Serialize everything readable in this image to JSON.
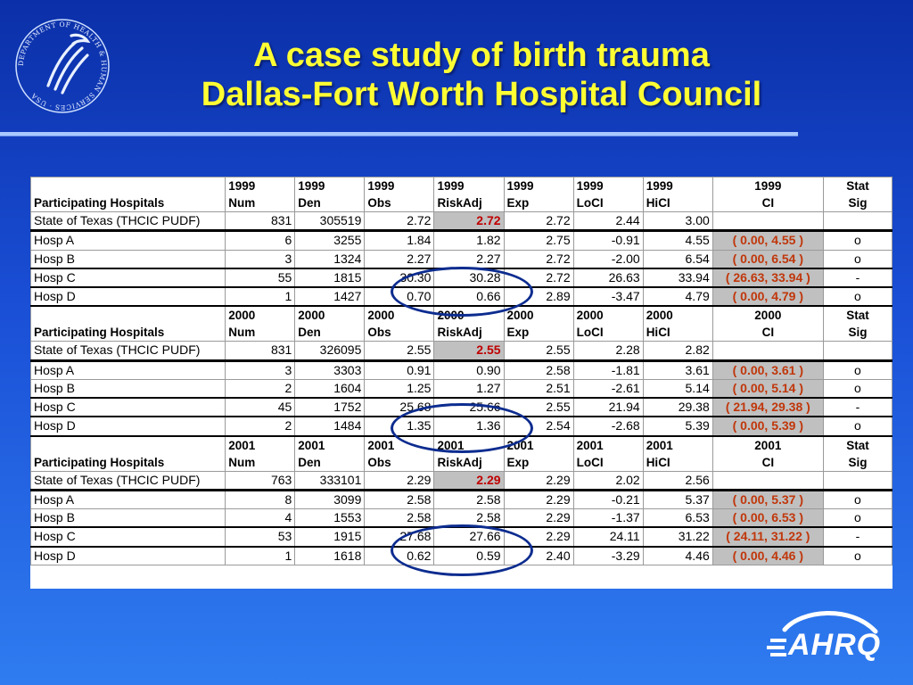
{
  "title": {
    "line1": "A case study of birth trauma",
    "line2": "Dallas-Fort Worth Hospital Council"
  },
  "logos": {
    "hhs_ring_text": "DEPARTMENT OF HEALTH & HUMAN SERVICES · USA",
    "ahrq_text": "AHRQ"
  },
  "colors": {
    "title": "#ffff33",
    "highlight_risk": "#c00000",
    "highlight_ci": "#c0370b",
    "cell_gray": "#c0c0c0"
  },
  "header_common": {
    "first_col": "Participating Hospitals",
    "sub": [
      "Num",
      "Den",
      "Obs",
      "RiskAdj",
      "Exp",
      "LoCI",
      "HiCI",
      "CI"
    ],
    "stat": "Stat",
    "sig": "Sig"
  },
  "blocks": [
    {
      "year": "1999",
      "state": {
        "name": "State of Texas (THCIC PUDF)",
        "num": "831",
        "den": "305519",
        "obs": "2.72",
        "riskadj": "2.72",
        "exp": "2.72",
        "loci": "2.44",
        "hici": "3.00"
      },
      "rows": [
        {
          "name": "Hosp A",
          "num": "6",
          "den": "3255",
          "obs": "1.84",
          "riskadj": "1.82",
          "exp": "2.75",
          "loci": "-0.91",
          "hici": "4.55",
          "ci": "( 0.00,  4.55 )",
          "sig": "o"
        },
        {
          "name": "Hosp B",
          "num": "3",
          "den": "1324",
          "obs": "2.27",
          "riskadj": "2.27",
          "exp": "2.72",
          "loci": "-2.00",
          "hici": "6.54",
          "ci": "( 0.00,  6.54 )",
          "sig": "o"
        },
        {
          "name": "Hosp C",
          "num": "55",
          "den": "1815",
          "obs": "30.30",
          "riskadj": "30.28",
          "exp": "2.72",
          "loci": "26.63",
          "hici": "33.94",
          "ci": "( 26.63,  33.94 )",
          "sig": "-"
        },
        {
          "name": "Hosp D",
          "num": "1",
          "den": "1427",
          "obs": "0.70",
          "riskadj": "0.66",
          "exp": "2.89",
          "loci": "-3.47",
          "hici": "4.79",
          "ci": "( 0.00,  4.79 )",
          "sig": "o"
        }
      ]
    },
    {
      "year": "2000",
      "state": {
        "name": "State of Texas (THCIC PUDF)",
        "num": "831",
        "den": "326095",
        "obs": "2.55",
        "riskadj": "2.55",
        "exp": "2.55",
        "loci": "2.28",
        "hici": "2.82"
      },
      "rows": [
        {
          "name": "Hosp A",
          "num": "3",
          "den": "3303",
          "obs": "0.91",
          "riskadj": "0.90",
          "exp": "2.58",
          "loci": "-1.81",
          "hici": "3.61",
          "ci": "( 0.00,  3.61 )",
          "sig": "o"
        },
        {
          "name": "Hosp B",
          "num": "2",
          "den": "1604",
          "obs": "1.25",
          "riskadj": "1.27",
          "exp": "2.51",
          "loci": "-2.61",
          "hici": "5.14",
          "ci": "( 0.00,  5.14 )",
          "sig": "o"
        },
        {
          "name": "Hosp C",
          "num": "45",
          "den": "1752",
          "obs": "25.68",
          "riskadj": "25.66",
          "exp": "2.55",
          "loci": "21.94",
          "hici": "29.38",
          "ci": "( 21.94,  29.38 )",
          "sig": "-"
        },
        {
          "name": "Hosp D",
          "num": "2",
          "den": "1484",
          "obs": "1.35",
          "riskadj": "1.36",
          "exp": "2.54",
          "loci": "-2.68",
          "hici": "5.39",
          "ci": "( 0.00,  5.39 )",
          "sig": "o"
        }
      ]
    },
    {
      "year": "2001",
      "state": {
        "name": "State of Texas (THCIC PUDF)",
        "num": "763",
        "den": "333101",
        "obs": "2.29",
        "riskadj": "2.29",
        "exp": "2.29",
        "loci": "2.02",
        "hici": "2.56"
      },
      "rows": [
        {
          "name": "Hosp A",
          "num": "8",
          "den": "3099",
          "obs": "2.58",
          "riskadj": "2.58",
          "exp": "2.29",
          "loci": "-0.21",
          "hici": "5.37",
          "ci": "( 0.00,  5.37 )",
          "sig": "o"
        },
        {
          "name": "Hosp B",
          "num": "4",
          "den": "1553",
          "obs": "2.58",
          "riskadj": "2.58",
          "exp": "2.29",
          "loci": "-1.37",
          "hici": "6.53",
          "ci": "( 0.00,  6.53 )",
          "sig": "o"
        },
        {
          "name": "Hosp C",
          "num": "53",
          "den": "1915",
          "obs": "27.68",
          "riskadj": "27.66",
          "exp": "2.29",
          "loci": "24.11",
          "hici": "31.22",
          "ci": "( 24.11,  31.22 )",
          "sig": "-"
        },
        {
          "name": "Hosp D",
          "num": "1",
          "den": "1618",
          "obs": "0.62",
          "riskadj": "0.59",
          "exp": "2.40",
          "loci": "-3.29",
          "hici": "4.46",
          "ci": "( 0.00,  4.46 )",
          "sig": "o"
        }
      ]
    }
  ]
}
